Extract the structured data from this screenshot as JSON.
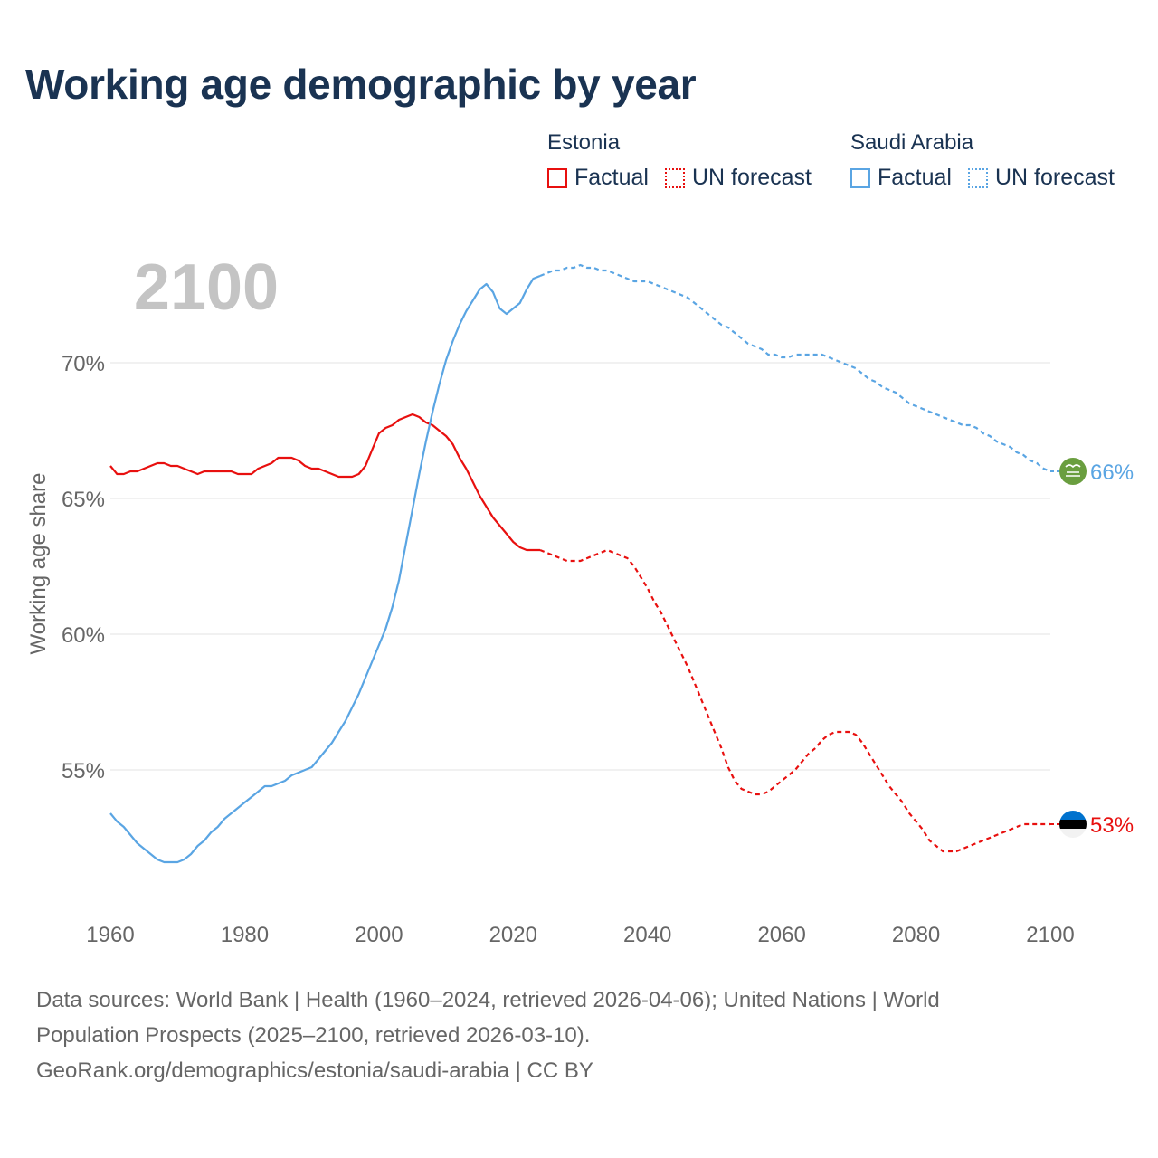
{
  "title": "Working age demographic by year",
  "legend": {
    "groups": [
      {
        "country": "Estonia",
        "factual": "Factual",
        "forecast": "UN forecast",
        "color": "#e8100f"
      },
      {
        "country": "Saudi Arabia",
        "factual": "Factual",
        "forecast": "UN forecast",
        "color": "#5aa5e3"
      }
    ]
  },
  "footer": {
    "line1": "Data sources: World Bank | Health (1960–2024, retrieved 2026-04-06); United Nations | World",
    "line2": "Population Prospects (2025–2100, retrieved 2026-03-10).",
    "line3": "GeoRank.org/demographics/estonia/saudi-arabia | CC BY"
  },
  "chart_data": {
    "type": "line",
    "year_label": "2100",
    "ylabel": "Working age share",
    "xlim": [
      1960,
      2100
    ],
    "ylim": [
      51,
      75
    ],
    "xticks": [
      1960,
      1980,
      2000,
      2020,
      2040,
      2060,
      2080,
      2100
    ],
    "yticks": [
      55,
      60,
      65,
      70
    ],
    "ytick_labels": [
      "55%",
      "60%",
      "65%",
      "70%"
    ],
    "factual_end_year": 2024,
    "series": [
      {
        "name": "Estonia",
        "color": "#e8100f",
        "end_label": "53%",
        "flag_icon": "estonia-flag-icon",
        "points": [
          [
            1960,
            66.2
          ],
          [
            1961,
            65.9
          ],
          [
            1962,
            65.9
          ],
          [
            1963,
            66.0
          ],
          [
            1964,
            66.0
          ],
          [
            1965,
            66.1
          ],
          [
            1966,
            66.2
          ],
          [
            1967,
            66.3
          ],
          [
            1968,
            66.3
          ],
          [
            1969,
            66.2
          ],
          [
            1970,
            66.2
          ],
          [
            1971,
            66.1
          ],
          [
            1972,
            66.0
          ],
          [
            1973,
            65.9
          ],
          [
            1974,
            66.0
          ],
          [
            1975,
            66.0
          ],
          [
            1976,
            66.0
          ],
          [
            1977,
            66.0
          ],
          [
            1978,
            66.0
          ],
          [
            1979,
            65.9
          ],
          [
            1980,
            65.9
          ],
          [
            1981,
            65.9
          ],
          [
            1982,
            66.1
          ],
          [
            1983,
            66.2
          ],
          [
            1984,
            66.3
          ],
          [
            1985,
            66.5
          ],
          [
            1986,
            66.5
          ],
          [
            1987,
            66.5
          ],
          [
            1988,
            66.4
          ],
          [
            1989,
            66.2
          ],
          [
            1990,
            66.1
          ],
          [
            1991,
            66.1
          ],
          [
            1992,
            66.0
          ],
          [
            1993,
            65.9
          ],
          [
            1994,
            65.8
          ],
          [
            1995,
            65.8
          ],
          [
            1996,
            65.8
          ],
          [
            1997,
            65.9
          ],
          [
            1998,
            66.2
          ],
          [
            1999,
            66.8
          ],
          [
            2000,
            67.4
          ],
          [
            2001,
            67.6
          ],
          [
            2002,
            67.7
          ],
          [
            2003,
            67.9
          ],
          [
            2004,
            68.0
          ],
          [
            2005,
            68.1
          ],
          [
            2006,
            68.0
          ],
          [
            2007,
            67.8
          ],
          [
            2008,
            67.7
          ],
          [
            2009,
            67.5
          ],
          [
            2010,
            67.3
          ],
          [
            2011,
            67.0
          ],
          [
            2012,
            66.5
          ],
          [
            2013,
            66.1
          ],
          [
            2014,
            65.6
          ],
          [
            2015,
            65.1
          ],
          [
            2016,
            64.7
          ],
          [
            2017,
            64.3
          ],
          [
            2018,
            64.0
          ],
          [
            2019,
            63.7
          ],
          [
            2020,
            63.4
          ],
          [
            2021,
            63.2
          ],
          [
            2022,
            63.1
          ],
          [
            2023,
            63.1
          ],
          [
            2024,
            63.1
          ],
          [
            2025,
            63.0
          ],
          [
            2026,
            62.9
          ],
          [
            2027,
            62.8
          ],
          [
            2028,
            62.7
          ],
          [
            2029,
            62.7
          ],
          [
            2030,
            62.7
          ],
          [
            2031,
            62.8
          ],
          [
            2032,
            62.9
          ],
          [
            2033,
            63.0
          ],
          [
            2034,
            63.1
          ],
          [
            2035,
            63.0
          ],
          [
            2036,
            62.9
          ],
          [
            2037,
            62.8
          ],
          [
            2038,
            62.5
          ],
          [
            2039,
            62.1
          ],
          [
            2040,
            61.7
          ],
          [
            2041,
            61.2
          ],
          [
            2042,
            60.8
          ],
          [
            2043,
            60.3
          ],
          [
            2044,
            59.8
          ],
          [
            2045,
            59.3
          ],
          [
            2046,
            58.8
          ],
          [
            2047,
            58.2
          ],
          [
            2048,
            57.6
          ],
          [
            2049,
            57.0
          ],
          [
            2050,
            56.4
          ],
          [
            2051,
            55.8
          ],
          [
            2052,
            55.1
          ],
          [
            2053,
            54.6
          ],
          [
            2054,
            54.3
          ],
          [
            2055,
            54.2
          ],
          [
            2056,
            54.1
          ],
          [
            2057,
            54.1
          ],
          [
            2058,
            54.2
          ],
          [
            2059,
            54.4
          ],
          [
            2060,
            54.6
          ],
          [
            2061,
            54.8
          ],
          [
            2062,
            55.0
          ],
          [
            2063,
            55.3
          ],
          [
            2064,
            55.6
          ],
          [
            2065,
            55.8
          ],
          [
            2066,
            56.1
          ],
          [
            2067,
            56.3
          ],
          [
            2068,
            56.4
          ],
          [
            2069,
            56.4
          ],
          [
            2070,
            56.4
          ],
          [
            2071,
            56.3
          ],
          [
            2072,
            56.0
          ],
          [
            2073,
            55.6
          ],
          [
            2074,
            55.2
          ],
          [
            2075,
            54.8
          ],
          [
            2076,
            54.4
          ],
          [
            2077,
            54.1
          ],
          [
            2078,
            53.8
          ],
          [
            2079,
            53.4
          ],
          [
            2080,
            53.1
          ],
          [
            2081,
            52.8
          ],
          [
            2082,
            52.4
          ],
          [
            2083,
            52.2
          ],
          [
            2084,
            52.0
          ],
          [
            2085,
            52.0
          ],
          [
            2086,
            52.0
          ],
          [
            2087,
            52.1
          ],
          [
            2088,
            52.2
          ],
          [
            2089,
            52.3
          ],
          [
            2090,
            52.4
          ],
          [
            2091,
            52.5
          ],
          [
            2092,
            52.6
          ],
          [
            2093,
            52.7
          ],
          [
            2094,
            52.8
          ],
          [
            2095,
            52.9
          ],
          [
            2096,
            53.0
          ],
          [
            2097,
            53.0
          ],
          [
            2098,
            53.0
          ],
          [
            2099,
            53.0
          ],
          [
            2100,
            53.0
          ]
        ]
      },
      {
        "name": "Saudi Arabia",
        "color": "#5aa5e3",
        "end_label": "66%",
        "flag_icon": "saudi-arabia-flag-icon",
        "points": [
          [
            1960,
            53.4
          ],
          [
            1961,
            53.1
          ],
          [
            1962,
            52.9
          ],
          [
            1963,
            52.6
          ],
          [
            1964,
            52.3
          ],
          [
            1965,
            52.1
          ],
          [
            1966,
            51.9
          ],
          [
            1967,
            51.7
          ],
          [
            1968,
            51.6
          ],
          [
            1969,
            51.6
          ],
          [
            1970,
            51.6
          ],
          [
            1971,
            51.7
          ],
          [
            1972,
            51.9
          ],
          [
            1973,
            52.2
          ],
          [
            1974,
            52.4
          ],
          [
            1975,
            52.7
          ],
          [
            1976,
            52.9
          ],
          [
            1977,
            53.2
          ],
          [
            1978,
            53.4
          ],
          [
            1979,
            53.6
          ],
          [
            1980,
            53.8
          ],
          [
            1981,
            54.0
          ],
          [
            1982,
            54.2
          ],
          [
            1983,
            54.4
          ],
          [
            1984,
            54.4
          ],
          [
            1985,
            54.5
          ],
          [
            1986,
            54.6
          ],
          [
            1987,
            54.8
          ],
          [
            1988,
            54.9
          ],
          [
            1989,
            55.0
          ],
          [
            1990,
            55.1
          ],
          [
            1991,
            55.4
          ],
          [
            1992,
            55.7
          ],
          [
            1993,
            56.0
          ],
          [
            1994,
            56.4
          ],
          [
            1995,
            56.8
          ],
          [
            1996,
            57.3
          ],
          [
            1997,
            57.8
          ],
          [
            1998,
            58.4
          ],
          [
            1999,
            59.0
          ],
          [
            2000,
            59.6
          ],
          [
            2001,
            60.2
          ],
          [
            2002,
            61.0
          ],
          [
            2003,
            62.0
          ],
          [
            2004,
            63.3
          ],
          [
            2005,
            64.6
          ],
          [
            2006,
            65.9
          ],
          [
            2007,
            67.1
          ],
          [
            2008,
            68.2
          ],
          [
            2009,
            69.2
          ],
          [
            2010,
            70.1
          ],
          [
            2011,
            70.8
          ],
          [
            2012,
            71.4
          ],
          [
            2013,
            71.9
          ],
          [
            2014,
            72.3
          ],
          [
            2015,
            72.7
          ],
          [
            2016,
            72.9
          ],
          [
            2017,
            72.6
          ],
          [
            2018,
            72.0
          ],
          [
            2019,
            71.8
          ],
          [
            2020,
            72.0
          ],
          [
            2021,
            72.2
          ],
          [
            2022,
            72.7
          ],
          [
            2023,
            73.1
          ],
          [
            2024,
            73.2
          ],
          [
            2025,
            73.3
          ],
          [
            2026,
            73.4
          ],
          [
            2027,
            73.4
          ],
          [
            2028,
            73.5
          ],
          [
            2029,
            73.5
          ],
          [
            2030,
            73.6
          ],
          [
            2031,
            73.5
          ],
          [
            2032,
            73.5
          ],
          [
            2033,
            73.4
          ],
          [
            2034,
            73.4
          ],
          [
            2035,
            73.3
          ],
          [
            2036,
            73.2
          ],
          [
            2037,
            73.1
          ],
          [
            2038,
            73.0
          ],
          [
            2039,
            73.0
          ],
          [
            2040,
            73.0
          ],
          [
            2041,
            72.9
          ],
          [
            2042,
            72.8
          ],
          [
            2043,
            72.7
          ],
          [
            2044,
            72.6
          ],
          [
            2045,
            72.5
          ],
          [
            2046,
            72.4
          ],
          [
            2047,
            72.2
          ],
          [
            2048,
            72.0
          ],
          [
            2049,
            71.8
          ],
          [
            2050,
            71.6
          ],
          [
            2051,
            71.4
          ],
          [
            2052,
            71.3
          ],
          [
            2053,
            71.1
          ],
          [
            2054,
            70.9
          ],
          [
            2055,
            70.7
          ],
          [
            2056,
            70.6
          ],
          [
            2057,
            70.5
          ],
          [
            2058,
            70.3
          ],
          [
            2059,
            70.3
          ],
          [
            2060,
            70.2
          ],
          [
            2061,
            70.2
          ],
          [
            2062,
            70.3
          ],
          [
            2063,
            70.3
          ],
          [
            2064,
            70.3
          ],
          [
            2065,
            70.3
          ],
          [
            2066,
            70.3
          ],
          [
            2067,
            70.2
          ],
          [
            2068,
            70.1
          ],
          [
            2069,
            70.0
          ],
          [
            2070,
            69.9
          ],
          [
            2071,
            69.8
          ],
          [
            2072,
            69.6
          ],
          [
            2073,
            69.4
          ],
          [
            2074,
            69.3
          ],
          [
            2075,
            69.1
          ],
          [
            2076,
            69.0
          ],
          [
            2077,
            68.9
          ],
          [
            2078,
            68.7
          ],
          [
            2079,
            68.5
          ],
          [
            2080,
            68.4
          ],
          [
            2081,
            68.3
          ],
          [
            2082,
            68.2
          ],
          [
            2083,
            68.1
          ],
          [
            2084,
            68.0
          ],
          [
            2085,
            67.9
          ],
          [
            2086,
            67.8
          ],
          [
            2087,
            67.7
          ],
          [
            2088,
            67.7
          ],
          [
            2089,
            67.6
          ],
          [
            2090,
            67.4
          ],
          [
            2091,
            67.3
          ],
          [
            2092,
            67.1
          ],
          [
            2093,
            67.0
          ],
          [
            2094,
            66.9
          ],
          [
            2095,
            66.7
          ],
          [
            2096,
            66.6
          ],
          [
            2097,
            66.4
          ],
          [
            2098,
            66.3
          ],
          [
            2099,
            66.1
          ],
          [
            2100,
            66.0
          ]
        ]
      }
    ]
  }
}
